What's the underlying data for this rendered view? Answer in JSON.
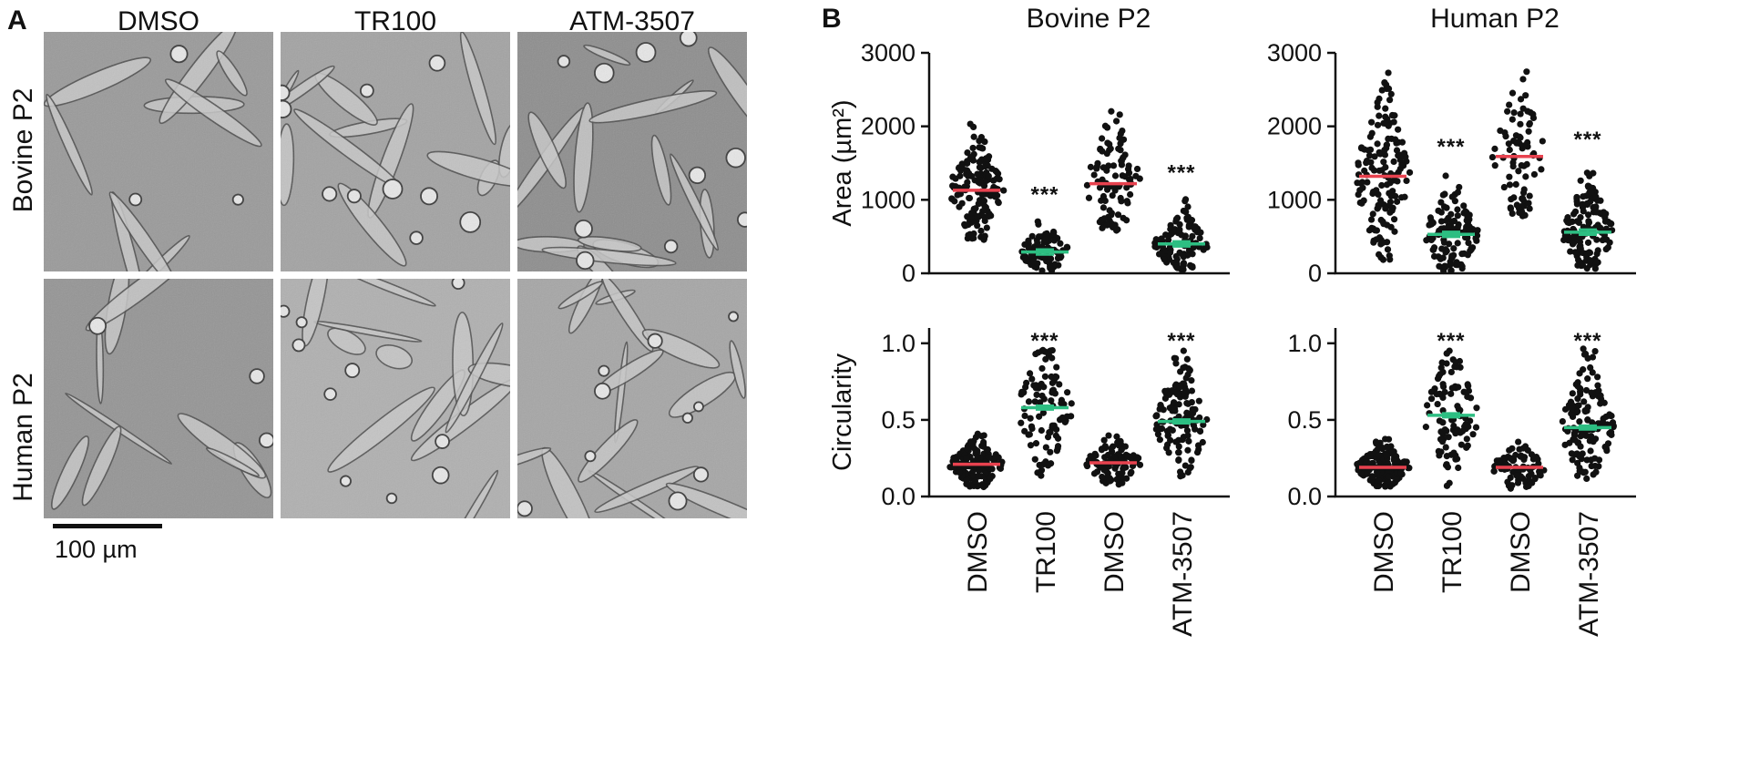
{
  "panel_a": {
    "letter": "A",
    "columns": [
      "DMSO",
      "TR100",
      "ATM-3507"
    ],
    "rows": [
      "Bovine P2",
      "Human P2"
    ],
    "scale_bar_label": "100 µm"
  },
  "panel_b": {
    "letter": "B"
  },
  "colors": {
    "mean_control": "#e8424f",
    "mean_treated": "#2dbe82",
    "dots": "#111111"
  },
  "chart_data": [
    {
      "type": "scatter",
      "subtype": "dot-plot",
      "title": "Bovine P2",
      "ylabel": "Area (µm²)",
      "xlabel": "",
      "categories": [
        "DMSO",
        "TR100",
        "DMSO",
        "ATM-3507"
      ],
      "ylim": [
        0,
        3000
      ],
      "yticks": [
        0,
        1000,
        2000,
        3000
      ],
      "means": [
        1130,
        290,
        1220,
        400
      ],
      "ranges": [
        [
          450,
          2050
        ],
        [
          30,
          750
        ],
        [
          580,
          2450
        ],
        [
          50,
          1050
        ]
      ],
      "n_points": [
        150,
        90,
        95,
        100
      ],
      "significance": [
        "",
        "***",
        "",
        "***"
      ],
      "x_labels_shown": false
    },
    {
      "type": "scatter",
      "subtype": "dot-plot",
      "title": "Human P2",
      "ylabel": "",
      "xlabel": "",
      "categories": [
        "DMSO",
        "TR100",
        "DMSO",
        "ATM-3507"
      ],
      "ylim": [
        0,
        3000
      ],
      "yticks": [
        0,
        1000,
        2000,
        3000
      ],
      "means": [
        1320,
        530,
        1590,
        560
      ],
      "ranges": [
        [
          120,
          2750
        ],
        [
          20,
          1400
        ],
        [
          750,
          2780
        ],
        [
          60,
          1500
        ]
      ],
      "n_points": [
        150,
        120,
        80,
        140
      ],
      "significance": [
        "",
        "***",
        "",
        "***"
      ],
      "x_labels_shown": false
    },
    {
      "type": "scatter",
      "subtype": "dot-plot",
      "title": "",
      "ylabel": "Circularity",
      "xlabel": "",
      "categories": [
        "DMSO",
        "TR100",
        "DMSO",
        "ATM-3507"
      ],
      "ylim": [
        0,
        1.1
      ],
      "yticks": [
        0.0,
        0.5,
        1.0
      ],
      "tick_labels": [
        "0.0",
        "0.5",
        "1.0"
      ],
      "means": [
        0.21,
        0.58,
        0.22,
        0.49
      ],
      "ranges": [
        [
          0.06,
          0.41
        ],
        [
          0.05,
          0.97
        ],
        [
          0.07,
          0.43
        ],
        [
          0.1,
          0.97
        ]
      ],
      "n_points": [
        150,
        95,
        95,
        130
      ],
      "significance": [
        "",
        "***",
        "",
        "***"
      ],
      "x_labels_shown": true
    },
    {
      "type": "scatter",
      "subtype": "dot-plot",
      "title": "",
      "ylabel": "",
      "xlabel": "",
      "categories": [
        "DMSO",
        "TR100",
        "DMSO",
        "ATM-3507"
      ],
      "ylim": [
        0,
        1.1
      ],
      "yticks": [
        0.0,
        0.5,
        1.0
      ],
      "tick_labels": [
        "0.0",
        "0.5",
        "1.0"
      ],
      "means": [
        0.19,
        0.53,
        0.19,
        0.45
      ],
      "ranges": [
        [
          0.06,
          0.38
        ],
        [
          0.06,
          0.97
        ],
        [
          0.05,
          0.39
        ],
        [
          0.08,
          0.97
        ]
      ],
      "n_points": [
        150,
        95,
        80,
        130
      ],
      "significance": [
        "",
        "***",
        "",
        "***"
      ],
      "x_labels_shown": true
    }
  ]
}
